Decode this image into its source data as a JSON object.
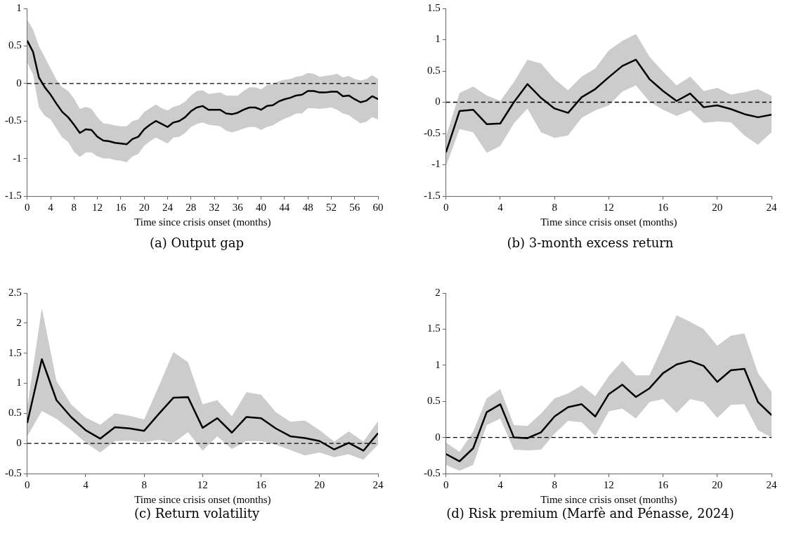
{
  "chart_data": [
    {
      "type": "line",
      "title": "(a) Output gap",
      "xlabel": "Time since crisis onset (months)",
      "x": [
        0,
        1,
        2,
        3,
        4,
        5,
        6,
        7,
        8,
        9,
        10,
        11,
        12,
        13,
        14,
        15,
        16,
        17,
        18,
        19,
        20,
        21,
        22,
        23,
        24,
        25,
        26,
        27,
        28,
        29,
        30,
        31,
        32,
        33,
        34,
        35,
        36,
        37,
        38,
        39,
        40,
        41,
        42,
        43,
        44,
        45,
        46,
        47,
        48,
        49,
        50,
        51,
        52,
        53,
        54,
        55,
        56,
        57,
        58,
        59,
        60
      ],
      "xlim": [
        0,
        60
      ],
      "xticks": [
        0,
        4,
        8,
        12,
        16,
        20,
        24,
        28,
        32,
        36,
        40,
        44,
        48,
        52,
        56,
        60
      ],
      "ylim": [
        -1.5,
        1
      ],
      "yticks": [
        -1.5,
        -1,
        -0.5,
        0,
        0.5,
        1
      ],
      "grid": false,
      "legend": false,
      "line_style": "solid",
      "marker": "none",
      "ref_lines": [
        {
          "axis": "y",
          "value": 0,
          "line_style": "dashed",
          "color": "#000000"
        }
      ],
      "series": [
        {
          "color": "#000000",
          "values": [
            0.57,
            0.42,
            0.08,
            -0.05,
            -0.15,
            -0.27,
            -0.38,
            -0.45,
            -0.55,
            -0.66,
            -0.61,
            -0.62,
            -0.71,
            -0.76,
            -0.77,
            -0.79,
            -0.8,
            -0.81,
            -0.74,
            -0.71,
            -0.61,
            -0.55,
            -0.5,
            -0.54,
            -0.58,
            -0.52,
            -0.5,
            -0.45,
            -0.37,
            -0.32,
            -0.3,
            -0.35,
            -0.35,
            -0.35,
            -0.4,
            -0.41,
            -0.39,
            -0.35,
            -0.32,
            -0.32,
            -0.35,
            -0.3,
            -0.29,
            -0.24,
            -0.21,
            -0.19,
            -0.16,
            -0.15,
            -0.1,
            -0.1,
            -0.12,
            -0.12,
            -0.11,
            -0.11,
            -0.17,
            -0.16,
            -0.21,
            -0.25,
            -0.23,
            -0.17,
            -0.21
          ],
          "upper": [
            0.85,
            0.72,
            0.5,
            0.35,
            0.2,
            0.05,
            -0.05,
            -0.1,
            -0.2,
            -0.34,
            -0.31,
            -0.34,
            -0.45,
            -0.53,
            -0.54,
            -0.56,
            -0.57,
            -0.57,
            -0.5,
            -0.48,
            -0.38,
            -0.33,
            -0.28,
            -0.33,
            -0.36,
            -0.31,
            -0.29,
            -0.24,
            -0.16,
            -0.1,
            -0.09,
            -0.14,
            -0.13,
            -0.12,
            -0.16,
            -0.16,
            -0.16,
            -0.1,
            -0.05,
            -0.05,
            -0.08,
            -0.02,
            -0.01,
            0.03,
            0.05,
            0.06,
            0.09,
            0.1,
            0.14,
            0.13,
            0.09,
            0.1,
            0.11,
            0.13,
            0.08,
            0.1,
            0.06,
            0.04,
            0.06,
            0.11,
            0.06
          ],
          "lower": [
            0.28,
            0.12,
            -0.32,
            -0.43,
            -0.48,
            -0.6,
            -0.72,
            -0.78,
            -0.91,
            -0.98,
            -0.92,
            -0.92,
            -0.97,
            -1,
            -1,
            -1.02,
            -1.03,
            -1.05,
            -0.97,
            -0.94,
            -0.83,
            -0.77,
            -0.72,
            -0.76,
            -0.8,
            -0.72,
            -0.71,
            -0.66,
            -0.58,
            -0.54,
            -0.52,
            -0.55,
            -0.56,
            -0.57,
            -0.63,
            -0.65,
            -0.63,
            -0.6,
            -0.58,
            -0.58,
            -0.62,
            -0.58,
            -0.56,
            -0.51,
            -0.47,
            -0.44,
            -0.4,
            -0.4,
            -0.33,
            -0.33,
            -0.34,
            -0.33,
            -0.32,
            -0.35,
            -0.4,
            -0.42,
            -0.48,
            -0.53,
            -0.51,
            -0.45,
            -0.48
          ]
        }
      ]
    },
    {
      "type": "line",
      "title": "(b) 3-month excess return",
      "xlabel": "Time since crisis onset (months)",
      "x": [
        0,
        1,
        2,
        3,
        4,
        5,
        6,
        7,
        8,
        9,
        10,
        11,
        12,
        13,
        14,
        15,
        16,
        17,
        18,
        19,
        20,
        21,
        22,
        23,
        24
      ],
      "xlim": [
        0,
        24
      ],
      "xticks": [
        0,
        4,
        8,
        12,
        16,
        20,
        24
      ],
      "ylim": [
        -1.5,
        1.5
      ],
      "yticks": [
        -1.5,
        -1,
        -0.5,
        0,
        0.5,
        1,
        1.5
      ],
      "grid": false,
      "legend": false,
      "line_style": "solid",
      "marker": "none",
      "ref_lines": [
        {
          "axis": "y",
          "value": 0,
          "line_style": "dashed",
          "color": "#000000"
        }
      ],
      "series": [
        {
          "color": "#000000",
          "values": [
            -0.8,
            -0.14,
            -0.12,
            -0.35,
            -0.34,
            0,
            0.29,
            0.07,
            -0.1,
            -0.17,
            0.08,
            0.21,
            0.4,
            0.58,
            0.68,
            0.37,
            0.18,
            0.02,
            0.14,
            -0.08,
            -0.05,
            -0.11,
            -0.19,
            -0.24,
            -0.2
          ],
          "upper": [
            -0.55,
            0.15,
            0.25,
            0.11,
            0.02,
            0.32,
            0.68,
            0.62,
            0.37,
            0.19,
            0.41,
            0.54,
            0.83,
            0.98,
            1.09,
            0.73,
            0.49,
            0.27,
            0.41,
            0.18,
            0.23,
            0.12,
            0.16,
            0.21,
            0.1
          ],
          "lower": [
            -1.02,
            -0.43,
            -0.48,
            -0.81,
            -0.7,
            -0.34,
            -0.1,
            -0.48,
            -0.57,
            -0.53,
            -0.25,
            -0.13,
            -0.05,
            0.17,
            0.27,
            0.01,
            -0.12,
            -0.22,
            -0.13,
            -0.33,
            -0.31,
            -0.32,
            -0.53,
            -0.68,
            -0.48
          ]
        }
      ]
    },
    {
      "type": "line",
      "title": "(c) Return volatility",
      "xlabel": "Time since crisis onset (months)",
      "x": [
        0,
        1,
        2,
        3,
        4,
        5,
        6,
        7,
        8,
        9,
        10,
        11,
        12,
        13,
        14,
        15,
        16,
        17,
        18,
        19,
        20,
        21,
        22,
        23,
        24
      ],
      "xlim": [
        0,
        24
      ],
      "xticks": [
        0,
        4,
        8,
        12,
        16,
        20,
        24
      ],
      "ylim": [
        -0.5,
        2.5
      ],
      "yticks": [
        -0.5,
        0,
        0.5,
        1,
        1.5,
        2,
        2.5
      ],
      "grid": false,
      "legend": false,
      "line_style": "solid",
      "marker": "none",
      "ref_lines": [
        {
          "axis": "y",
          "value": 0,
          "line_style": "dashed",
          "color": "#000000"
        }
      ],
      "series": [
        {
          "color": "#000000",
          "values": [
            0.34,
            1.4,
            0.72,
            0.44,
            0.22,
            0.08,
            0.27,
            0.25,
            0.21,
            0.49,
            0.76,
            0.77,
            0.26,
            0.42,
            0.18,
            0.44,
            0.42,
            0.25,
            0.12,
            0.09,
            0.04,
            -0.1,
            0.01,
            -0.12,
            0.17
          ],
          "upper": [
            0.6,
            2.25,
            1.04,
            0.65,
            0.43,
            0.31,
            0.5,
            0.46,
            0.4,
            0.95,
            1.52,
            1.35,
            0.65,
            0.72,
            0.45,
            0.85,
            0.81,
            0.52,
            0.36,
            0.38,
            0.22,
            0.03,
            0.2,
            0.03,
            0.37
          ],
          "lower": [
            0.12,
            0.54,
            0.41,
            0.22,
            0.01,
            -0.15,
            0.04,
            0.05,
            0.02,
            0.06,
            0.01,
            0.19,
            -0.12,
            0.12,
            -0.09,
            0.04,
            0.04,
            -0.02,
            -0.11,
            -0.2,
            -0.15,
            -0.23,
            -0.18,
            -0.27,
            -0.02
          ]
        }
      ]
    },
    {
      "type": "line",
      "title": "(d) Risk premium (Marfè and Pénasse, 2024)",
      "xlabel": "Time since crisis onset (months)",
      "x": [
        0,
        1,
        2,
        3,
        4,
        5,
        6,
        7,
        8,
        9,
        10,
        11,
        12,
        13,
        14,
        15,
        16,
        17,
        18,
        19,
        20,
        21,
        22,
        23,
        24
      ],
      "xlim": [
        0,
        24
      ],
      "xticks": [
        0,
        4,
        8,
        12,
        16,
        20,
        24
      ],
      "ylim": [
        -0.5,
        2
      ],
      "yticks": [
        -0.5,
        0,
        0.5,
        1,
        1.5,
        2
      ],
      "grid": false,
      "legend": false,
      "line_style": "solid",
      "marker": "none",
      "ref_lines": [
        {
          "axis": "y",
          "value": 0,
          "line_style": "dashed",
          "color": "#000000"
        }
      ],
      "series": [
        {
          "color": "#000000",
          "values": [
            -0.23,
            -0.33,
            -0.15,
            0.35,
            0.46,
            0,
            -0.01,
            0.07,
            0.29,
            0.42,
            0.46,
            0.29,
            0.6,
            0.73,
            0.56,
            0.68,
            0.89,
            1.01,
            1.06,
            0.99,
            0.77,
            0.93,
            0.95,
            0.49,
            0.31
          ],
          "upper": [
            -0.07,
            -0.2,
            0.08,
            0.54,
            0.67,
            0.17,
            0.16,
            0.33,
            0.54,
            0.61,
            0.72,
            0.57,
            0.85,
            1.06,
            0.86,
            0.86,
            1.27,
            1.69,
            1.6,
            1.5,
            1.27,
            1.41,
            1.44,
            0.89,
            0.63
          ],
          "lower": [
            -0.38,
            -0.46,
            -0.38,
            0.17,
            0.26,
            -0.17,
            -0.18,
            -0.17,
            0.05,
            0.23,
            0.21,
            0.02,
            0.36,
            0.4,
            0.26,
            0.49,
            0.53,
            0.34,
            0.53,
            0.49,
            0.27,
            0.45,
            0.46,
            0.1,
            0
          ]
        }
      ]
    }
  ]
}
